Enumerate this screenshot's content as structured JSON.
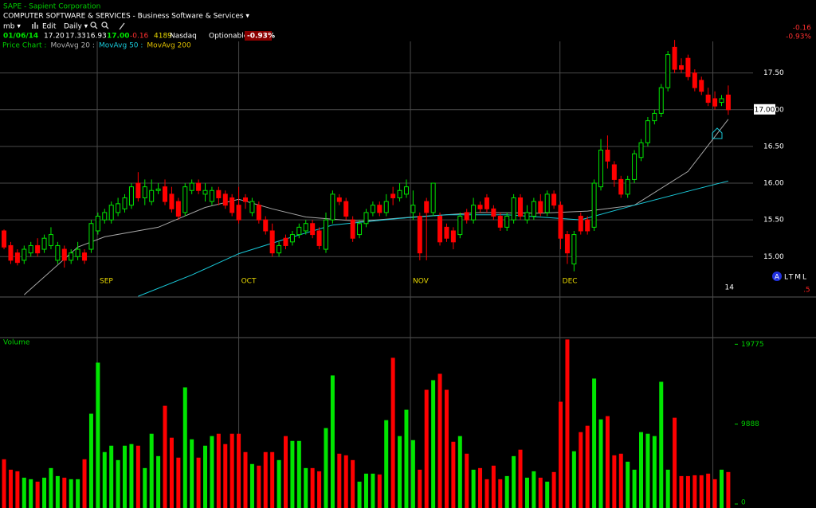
{
  "header": {
    "title": "SAPE - Sapient Corporation",
    "sector": "COMPUTER SOFTWARE & SERVICES - Business Software & Services ▾",
    "toolbar": [
      "mb ▾",
      "Edit",
      "Daily ▾"
    ],
    "date": "01/06/14",
    "open": "17.20",
    "high": "17.33",
    "low": "16.93",
    "last": "17.00",
    "change": "-0.16",
    "volume": "4189",
    "exchange": "Nasdaq",
    "optionable": "Optionable",
    "change_pct": "-0.93%",
    "legend": [
      {
        "label": "Price Chart :",
        "color": "#00d000"
      },
      {
        "label": "MovAvg 20 :",
        "color": "#b0b0b0"
      },
      {
        "label": "MovAvg 50 :",
        "color": "#19c8d8"
      },
      {
        "label": "MovAvg 200",
        "color": "#e0c000"
      }
    ],
    "corner_change": "-0.16",
    "corner_change_pct": "-0.93%",
    "badge": "A",
    "badge_text": "LTML",
    "badge_sub": ".5"
  },
  "chart_data": {
    "type": "candlestick",
    "up_color": "#00e600",
    "down_color": "#ff0000",
    "open": [
      15.35,
      15.15,
      15.05,
      14.95,
      15.05,
      15.15,
      15.1,
      15.15,
      14.95,
      15.1,
      14.95,
      15.0,
      15.05,
      15.1,
      15.35,
      15.5,
      15.5,
      15.6,
      15.65,
      15.7,
      16.0,
      15.8,
      15.75,
      15.9,
      15.95,
      15.85,
      15.75,
      15.6,
      15.9,
      16.0,
      15.85,
      15.75,
      15.9,
      15.85,
      15.8,
      15.7,
      15.8,
      15.6,
      15.7,
      15.5,
      15.35,
      15.05,
      15.25,
      15.2,
      15.3,
      15.35,
      15.45,
      15.35,
      15.1,
      15.5,
      15.8,
      15.75,
      15.5,
      15.3,
      15.45,
      15.6,
      15.7,
      15.6,
      15.85,
      15.8,
      15.85,
      15.6,
      15.55,
      15.75,
      15.6,
      15.55,
      15.4,
      15.35,
      15.3,
      15.6,
      15.5,
      15.7,
      15.8,
      15.65,
      15.55,
      15.4,
      15.5,
      15.8,
      15.5,
      15.55,
      15.75,
      15.6,
      15.85,
      15.7,
      15.3,
      14.9,
      15.55,
      15.5,
      15.4,
      15.95,
      16.45,
      16.25,
      16.05,
      15.85,
      16.05,
      16.35,
      16.55,
      16.85,
      16.95,
      17.3,
      17.85,
      17.6,
      17.7,
      17.5,
      17.4,
      17.2,
      17.15,
      17.1,
      17.2
    ],
    "high": [
      15.37,
      15.2,
      15.1,
      15.15,
      15.2,
      15.25,
      15.3,
      15.4,
      15.2,
      15.15,
      15.1,
      15.2,
      15.1,
      15.5,
      15.6,
      15.65,
      15.75,
      15.8,
      15.85,
      16.0,
      16.15,
      16.05,
      16.05,
      16.0,
      16.05,
      15.95,
      15.8,
      16.0,
      16.05,
      16.05,
      16.0,
      15.95,
      15.95,
      15.9,
      15.85,
      15.95,
      15.85,
      15.8,
      15.75,
      15.55,
      15.45,
      15.2,
      15.3,
      15.35,
      15.45,
      15.5,
      15.5,
      15.4,
      15.6,
      15.9,
      15.85,
      15.8,
      15.55,
      15.5,
      15.65,
      15.75,
      15.75,
      15.85,
      15.95,
      16.0,
      16.05,
      15.9,
      15.6,
      15.8,
      16.0,
      15.6,
      15.45,
      15.4,
      15.6,
      15.65,
      15.8,
      15.75,
      15.85,
      15.7,
      15.6,
      15.6,
      15.85,
      15.85,
      15.7,
      15.8,
      15.85,
      15.9,
      15.9,
      15.75,
      15.35,
      15.35,
      15.6,
      15.55,
      16.05,
      16.6,
      16.65,
      16.3,
      16.1,
      16.1,
      16.45,
      16.6,
      16.9,
      17.0,
      17.35,
      17.8,
      17.95,
      17.7,
      17.75,
      17.55,
      17.45,
      17.3,
      17.25,
      17.2,
      17.33
    ],
    "low": [
      15.1,
      14.9,
      14.88,
      14.9,
      15.0,
      15.0,
      15.05,
      15.1,
      14.9,
      14.85,
      14.9,
      14.95,
      14.9,
      15.05,
      15.3,
      15.45,
      15.45,
      15.55,
      15.6,
      15.65,
      15.75,
      15.7,
      15.7,
      15.85,
      15.7,
      15.6,
      15.5,
      15.55,
      15.85,
      15.85,
      15.75,
      15.7,
      15.7,
      15.65,
      15.55,
      15.45,
      15.65,
      15.55,
      15.45,
      15.3,
      15.0,
      15.0,
      15.1,
      15.15,
      15.25,
      15.3,
      15.25,
      15.1,
      15.05,
      15.45,
      15.7,
      15.5,
      15.2,
      15.25,
      15.4,
      15.55,
      15.55,
      15.55,
      15.7,
      15.75,
      15.8,
      15.5,
      14.95,
      14.95,
      15.55,
      15.15,
      15.2,
      15.1,
      15.25,
      15.45,
      15.45,
      15.6,
      15.6,
      15.5,
      15.35,
      15.35,
      15.45,
      15.5,
      15.45,
      15.5,
      15.55,
      15.55,
      15.65,
      15.1,
      14.9,
      14.8,
      15.3,
      15.3,
      15.35,
      15.9,
      16.2,
      15.95,
      15.8,
      15.8,
      16.0,
      16.3,
      16.5,
      16.8,
      16.9,
      17.25,
      17.5,
      17.5,
      17.4,
      17.25,
      17.2,
      17.05,
      17.0,
      17.05,
      16.93
    ],
    "close": [
      15.13,
      14.95,
      14.92,
      15.1,
      15.15,
      15.05,
      15.25,
      15.3,
      15.15,
      14.95,
      15.05,
      15.1,
      14.95,
      15.45,
      15.55,
      15.6,
      15.7,
      15.72,
      15.8,
      15.95,
      15.8,
      15.95,
      15.9,
      15.92,
      15.75,
      15.65,
      15.55,
      15.95,
      16.0,
      15.9,
      15.9,
      15.9,
      15.8,
      15.7,
      15.6,
      15.5,
      15.75,
      15.75,
      15.5,
      15.35,
      15.05,
      15.15,
      15.15,
      15.3,
      15.4,
      15.45,
      15.3,
      15.15,
      15.5,
      15.85,
      15.75,
      15.55,
      15.25,
      15.45,
      15.6,
      15.7,
      15.6,
      15.75,
      15.8,
      15.9,
      15.95,
      15.7,
      15.05,
      15.6,
      16.0,
      15.2,
      15.25,
      15.2,
      15.55,
      15.5,
      15.7,
      15.65,
      15.65,
      15.55,
      15.4,
      15.55,
      15.8,
      15.55,
      15.6,
      15.75,
      15.6,
      15.85,
      15.7,
      15.25,
      15.05,
      15.3,
      15.35,
      15.35,
      16.0,
      16.45,
      16.3,
      16.05,
      15.85,
      16.05,
      16.4,
      16.55,
      16.85,
      16.95,
      17.3,
      17.75,
      17.55,
      17.55,
      17.45,
      17.3,
      17.25,
      17.1,
      17.05,
      17.15,
      17.0
    ],
    "xlim": [
      -0.6,
      111.1
    ],
    "xticks": [
      {
        "value": 13.9,
        "label": "SEP"
      },
      {
        "value": 35,
        "label": "OCT"
      },
      {
        "value": 60.6,
        "label": "NOV"
      },
      {
        "value": 82.9,
        "label": "DEC"
      },
      {
        "value": 105.7,
        "label": "14"
      }
    ],
    "ylim": [
      14.45,
      17.93
    ],
    "yticks": [
      {
        "value": 15,
        "label": "15.00"
      },
      {
        "value": 15.5,
        "label": "15.50"
      },
      {
        "value": 16,
        "label": "16.00"
      },
      {
        "value": 16.5,
        "label": "16.50"
      },
      {
        "value": 17,
        "label": "17.00"
      },
      {
        "value": 17.5,
        "label": "17.50"
      }
    ],
    "price_marker": {
      "value": 17,
      "label": "17.00"
    },
    "moving_averages": [
      {
        "color": "#a8a8a8",
        "x": [
          3,
          11,
          15,
          23,
          30,
          35,
          40,
          45,
          53,
          61,
          71,
          80,
          87,
          94,
          102,
          108
        ],
        "values": [
          14.48,
          15.13,
          15.27,
          15.4,
          15.67,
          15.78,
          15.65,
          15.54,
          15.48,
          15.54,
          15.6,
          15.59,
          15.62,
          15.7,
          16.16,
          16.87
        ]
      },
      {
        "color": "#19c8d8",
        "x": [
          20,
          28,
          35,
          42,
          49,
          59,
          66,
          75,
          86,
          94,
          102,
          108
        ],
        "values": [
          14.46,
          14.75,
          15.04,
          15.24,
          15.43,
          15.52,
          15.57,
          15.57,
          15.5,
          15.7,
          15.89,
          16.03
        ]
      }
    ],
    "volume": {
      "label": "Volume",
      "values": [
        5540,
        4250,
        4050,
        3260,
        3070,
        2770,
        3260,
        4450,
        3460,
        3260,
        3070,
        3070,
        5540,
        11180,
        17500,
        6430,
        7220,
        5440,
        7220,
        7420,
        7220,
        4450,
        8700,
        5930,
        12160,
        8210,
        5740,
        14440,
        8010,
        5740,
        7220,
        8410,
        8700,
        7420,
        8700,
        8700,
        6430,
        4950,
        4750,
        6430,
        6430,
        5440,
        8410,
        7810,
        7810,
        4450,
        4450,
        4050,
        9400,
        15920,
        6230,
        6030,
        5440,
        2770,
        3760,
        3760,
        3660,
        10380,
        18100,
        8410,
        11670,
        7910,
        4250,
        14140,
        15330,
        16120,
        14140,
        7710,
        8410,
        6230,
        4250,
        4450,
        3070,
        4750,
        3070,
        3460,
        5930,
        6730,
        3260,
        4050,
        3260,
        2770,
        3960,
        12660,
        20370,
        6530,
        8900,
        9690,
        15530,
        10480,
        10880,
        6030,
        6230,
        5240,
        4250,
        8900,
        8700,
        8410,
        15130,
        4250,
        10680,
        3460,
        3460,
        3560,
        3560,
        3760,
        3070,
        4250,
        3960
      ],
      "ylim": [
        0,
        20500
      ],
      "yticks": [
        0,
        9888,
        19775
      ]
    }
  }
}
